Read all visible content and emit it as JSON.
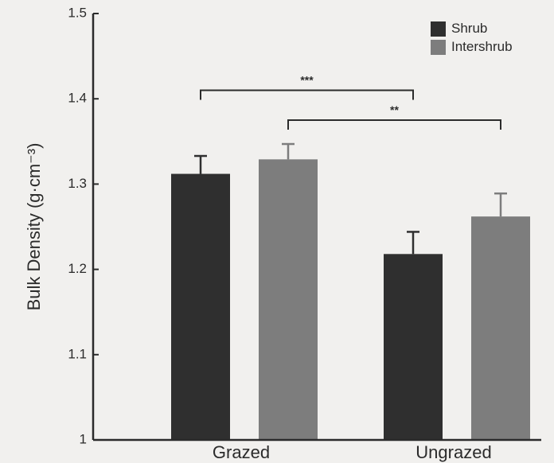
{
  "chart_data": {
    "type": "bar",
    "title": "",
    "xlabel": "",
    "ylabel": "Bulk Density (g·cm⁻³)",
    "ylim": [
      1.0,
      1.5
    ],
    "yticks": [
      "1",
      "1.1",
      "1.2",
      "1.3",
      "1.4",
      "1.5"
    ],
    "categories": [
      "Grazed",
      "Ungrazed"
    ],
    "series": [
      {
        "name": "Shrub",
        "values": [
          1.312,
          1.218
        ],
        "errors": [
          0.021,
          0.026
        ],
        "color": "#2f2f2f"
      },
      {
        "name": "Intershrub",
        "values": [
          1.329,
          1.262
        ],
        "errors": [
          0.018,
          0.027
        ],
        "color": "#7d7d7d"
      }
    ],
    "legend_position": "top-right",
    "significance": [
      {
        "label": "***",
        "from": "Shrub:Grazed",
        "to": "Shrub:Ungrazed",
        "y": 1.41
      },
      {
        "label": "**",
        "from": "Intershrub:Grazed",
        "to": "Intershrub:Ungrazed",
        "y": 1.375
      }
    ]
  }
}
